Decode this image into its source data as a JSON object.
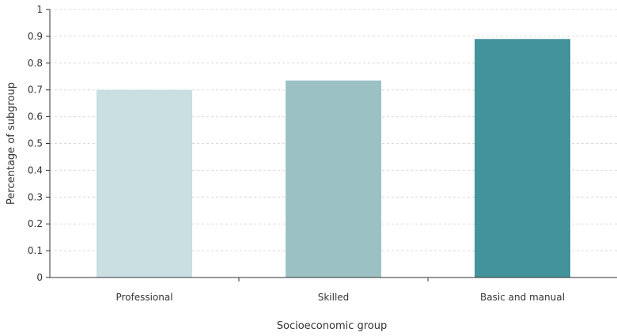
{
  "chart_data": {
    "type": "bar",
    "categories": [
      "Professional",
      "Skilled",
      "Basic and manual"
    ],
    "values": [
      0.7,
      0.735,
      0.89
    ],
    "bar_colors": [
      "#cadfe1",
      "#9bc1c3",
      "#43939a"
    ],
    "xlabel": "Socioeconomic group",
    "ylabel": "Percentage of subgroup",
    "ylim": [
      0,
      1
    ],
    "yticks": [
      "0",
      "0.1",
      "0.2",
      "0.3",
      "0.4",
      "0.5",
      "0.6",
      "0.7",
      "0.8",
      "0.9",
      "1"
    ],
    "grid": true,
    "legend": "none"
  }
}
